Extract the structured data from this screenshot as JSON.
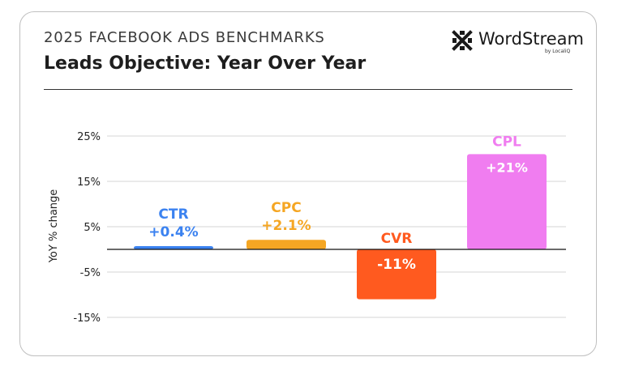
{
  "header": {
    "supertitle": "2025 FACEBOOK ADS BENCHMARKS",
    "title": "Leads Objective: Year Over Year"
  },
  "brand": {
    "name": "WordStream",
    "sub": "by LocaliQ",
    "icon": "wordstream-logo-icon"
  },
  "chart_data": {
    "type": "bar",
    "ylabel": "YoY % change",
    "ylim": [
      -18,
      27
    ],
    "yticks": [
      25,
      15,
      5,
      -5,
      -15
    ],
    "ytick_labels": [
      "25%",
      "15%",
      "5%",
      "-5%",
      "-15%"
    ],
    "grid": true,
    "categories": [
      "CTR",
      "CPC",
      "CVR",
      "CPL"
    ],
    "values": [
      0.4,
      2.1,
      -11,
      21
    ],
    "value_labels": [
      "+0.4%",
      "+2.1%",
      "-11%",
      "+21%"
    ],
    "colors": [
      "#3b82f0",
      "#f5a623",
      "#ff5a1f",
      "#f07df0"
    ]
  }
}
